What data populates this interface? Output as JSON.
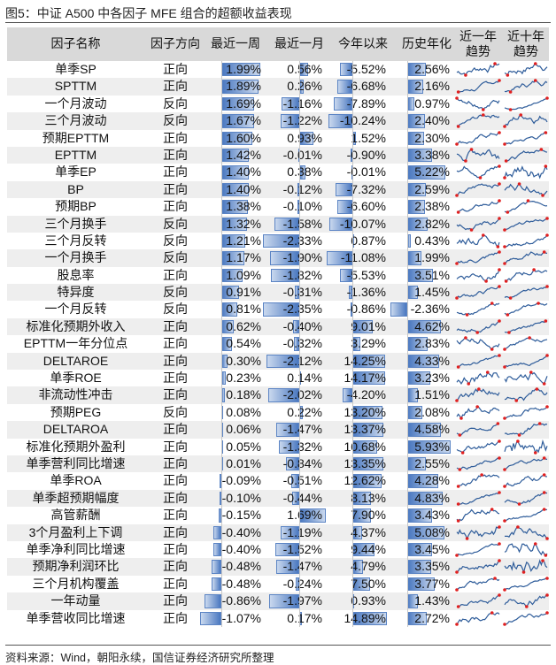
{
  "title": "图5：中证 A500 中各因子 MFE 组合的超额收益表现",
  "source": "资料来源：Wind，朝阳永续，国信证券经济研究所整理",
  "headers": {
    "name": "因子名称",
    "direction": "因子方向",
    "week": "最近一周",
    "month": "最近一月",
    "ytd": "今年以来",
    "annual": "历史年化",
    "trend1": "近一年\n趋势",
    "trend10": "近十年\n趋势"
  },
  "colors": {
    "bar": "#4a78c0",
    "header_bg": "#d9d9d9",
    "alt_row": "#eeeeee",
    "spark_line": "#2e5c9a",
    "spark_point": "#e02020"
  },
  "rows": [
    {
      "name": "单季SP",
      "dir": "正向",
      "week": 1.99,
      "month": 0.56,
      "ytd": -5.52,
      "annual": 2.56
    },
    {
      "name": "SPTTM",
      "dir": "正向",
      "week": 1.89,
      "month": 0.26,
      "ytd": -6.68,
      "annual": 2.16
    },
    {
      "name": "一个月波动",
      "dir": "反向",
      "week": 1.69,
      "month": -1.16,
      "ytd": -7.89,
      "annual": 0.97
    },
    {
      "name": "三个月波动",
      "dir": "反向",
      "week": 1.67,
      "month": -1.22,
      "ytd": -10.24,
      "annual": 2.4
    },
    {
      "name": "预期EPTTM",
      "dir": "正向",
      "week": 1.6,
      "month": 0.93,
      "ytd": 1.52,
      "annual": 2.3
    },
    {
      "name": "EPTTM",
      "dir": "正向",
      "week": 1.42,
      "month": -0.01,
      "ytd": -0.9,
      "annual": 3.38
    },
    {
      "name": "单季EP",
      "dir": "正向",
      "week": 1.4,
      "month": 0.38,
      "ytd": -0.01,
      "annual": 5.22
    },
    {
      "name": "BP",
      "dir": "正向",
      "week": 1.4,
      "month": -0.12,
      "ytd": -7.32,
      "annual": 2.59
    },
    {
      "name": "预期BP",
      "dir": "正向",
      "week": 1.38,
      "month": -0.1,
      "ytd": -6.6,
      "annual": 2.38
    },
    {
      "name": "三个月换手",
      "dir": "反向",
      "week": 1.32,
      "month": -1.58,
      "ytd": -10.07,
      "annual": 2.82
    },
    {
      "name": "三个月反转",
      "dir": "反向",
      "week": 1.21,
      "month": -2.33,
      "ytd": 0.87,
      "annual": 0.43
    },
    {
      "name": "一个月换手",
      "dir": "反向",
      "week": 1.17,
      "month": -1.9,
      "ytd": -11.08,
      "annual": 1.99
    },
    {
      "name": "股息率",
      "dir": "正向",
      "week": 1.09,
      "month": -1.82,
      "ytd": -5.53,
      "annual": 3.51
    },
    {
      "name": "特异度",
      "dir": "反向",
      "week": 0.91,
      "month": -0.31,
      "ytd": -1.36,
      "annual": 1.45
    },
    {
      "name": "一个月反转",
      "dir": "反向",
      "week": 0.81,
      "month": -2.35,
      "ytd": -0.86,
      "annual": -2.36
    },
    {
      "name": "标准化预期外收入",
      "dir": "正向",
      "week": 0.62,
      "month": -0.4,
      "ytd": 9.01,
      "annual": 4.62
    },
    {
      "name": "EPTTM一年分位点",
      "dir": "正向",
      "week": 0.54,
      "month": -0.32,
      "ytd": 3.29,
      "annual": 2.83
    },
    {
      "name": "DELTAROE",
      "dir": "正向",
      "week": 0.3,
      "month": -2.12,
      "ytd": 14.25,
      "annual": 4.33
    },
    {
      "name": "单季ROE",
      "dir": "正向",
      "week": 0.23,
      "month": 0.14,
      "ytd": 14.17,
      "annual": 3.23
    },
    {
      "name": "非流动性冲击",
      "dir": "正向",
      "week": 0.18,
      "month": -2.02,
      "ytd": -4.2,
      "annual": 1.51
    },
    {
      "name": "预期PEG",
      "dir": "反向",
      "week": 0.08,
      "month": 0.22,
      "ytd": 13.2,
      "annual": 2.08
    },
    {
      "name": "DELTAROA",
      "dir": "正向",
      "week": 0.06,
      "month": -1.47,
      "ytd": 13.37,
      "annual": 4.58
    },
    {
      "name": "标准化预期外盈利",
      "dir": "正向",
      "week": 0.05,
      "month": -1.32,
      "ytd": 10.68,
      "annual": 5.93
    },
    {
      "name": "单季营利同比增速",
      "dir": "正向",
      "week": 0.01,
      "month": -0.84,
      "ytd": 13.35,
      "annual": 2.55
    },
    {
      "name": "单季ROA",
      "dir": "正向",
      "week": -0.09,
      "month": -0.51,
      "ytd": 12.62,
      "annual": 4.28
    },
    {
      "name": "单季超预期幅度",
      "dir": "正向",
      "week": -0.1,
      "month": -0.44,
      "ytd": 8.13,
      "annual": 4.83
    },
    {
      "name": "高管薪酬",
      "dir": "正向",
      "week": -0.15,
      "month": 1.69,
      "ytd": 7.9,
      "annual": 3.43
    },
    {
      "name": "3个月盈利上下调",
      "dir": "正向",
      "week": -0.4,
      "month": -1.19,
      "ytd": 4.37,
      "annual": 5.08
    },
    {
      "name": "单季净利同比增速",
      "dir": "正向",
      "week": -0.4,
      "month": -1.52,
      "ytd": 9.44,
      "annual": 3.45
    },
    {
      "name": "预期净利润环比",
      "dir": "正向",
      "week": -0.48,
      "month": -1.47,
      "ytd": 4.79,
      "annual": 3.35
    },
    {
      "name": "三个月机构覆盖",
      "dir": "正向",
      "week": -0.48,
      "month": -0.24,
      "ytd": 7.5,
      "annual": 3.77
    },
    {
      "name": "一年动量",
      "dir": "正向",
      "week": -0.86,
      "month": -1.97,
      "ytd": 0.93,
      "annual": 1.43
    },
    {
      "name": "单季营收同比增速",
      "dir": "正向",
      "week": -1.07,
      "month": 0.17,
      "ytd": 14.89,
      "annual": 2.72
    }
  ]
}
